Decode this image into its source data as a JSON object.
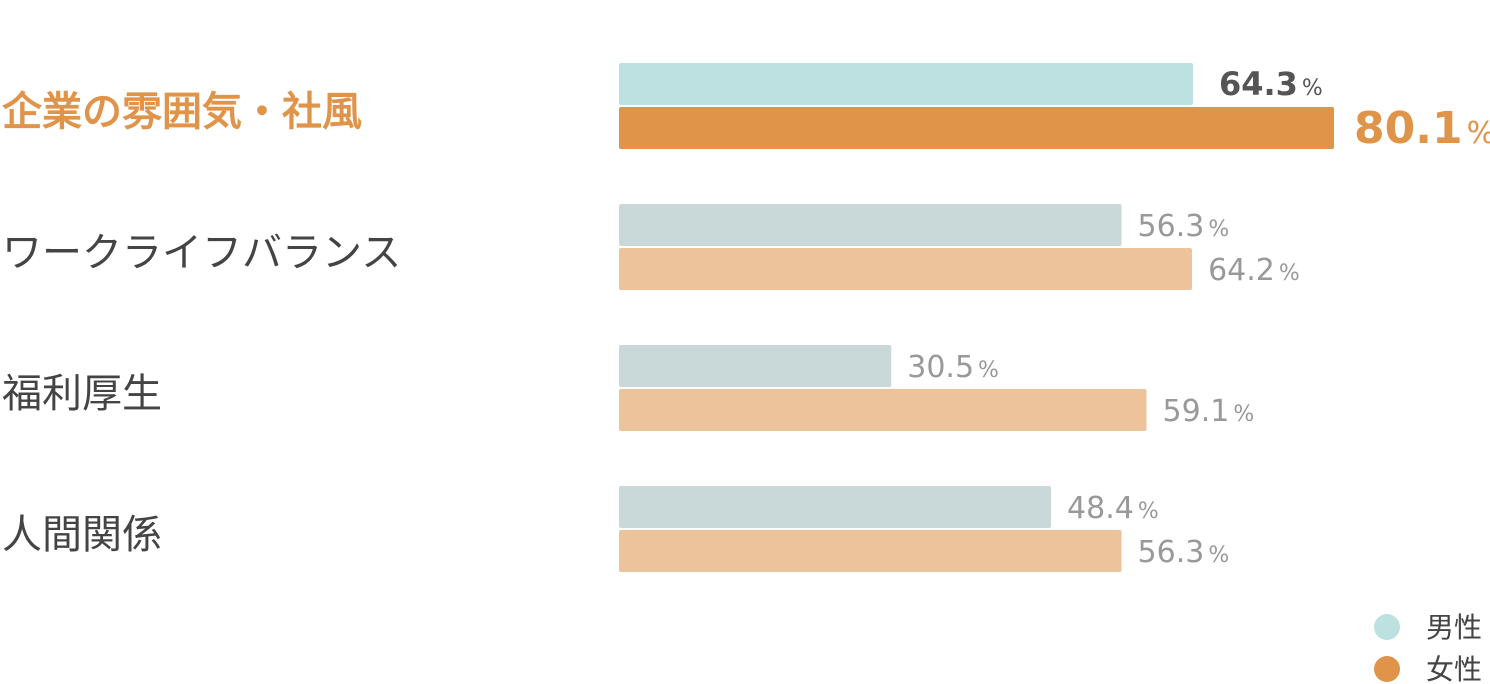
{
  "chart_data": {
    "type": "bar",
    "orientation": "horizontal",
    "categories": [
      "企業の雰囲気・社風",
      "ワークライフバランス",
      "福利厚生",
      "人間関係"
    ],
    "highlight_category": "企業の雰囲気・社風",
    "unit": "%",
    "xlim": [
      0,
      80.1
    ],
    "grid": false,
    "legend_position": "bottom-right",
    "series": [
      {
        "name": "男性",
        "values": [
          64.3,
          56.3,
          30.5,
          48.4
        ],
        "color": "#c9d9d9",
        "highlight_color": "#bde0e0"
      },
      {
        "name": "女性",
        "values": [
          80.1,
          64.2,
          59.1,
          56.3
        ],
        "color": "#edc39b",
        "highlight_color": "#e0944a"
      }
    ],
    "legend": {
      "male_dot_color": "#bde0e0",
      "female_dot_color": "#e0944a"
    }
  }
}
